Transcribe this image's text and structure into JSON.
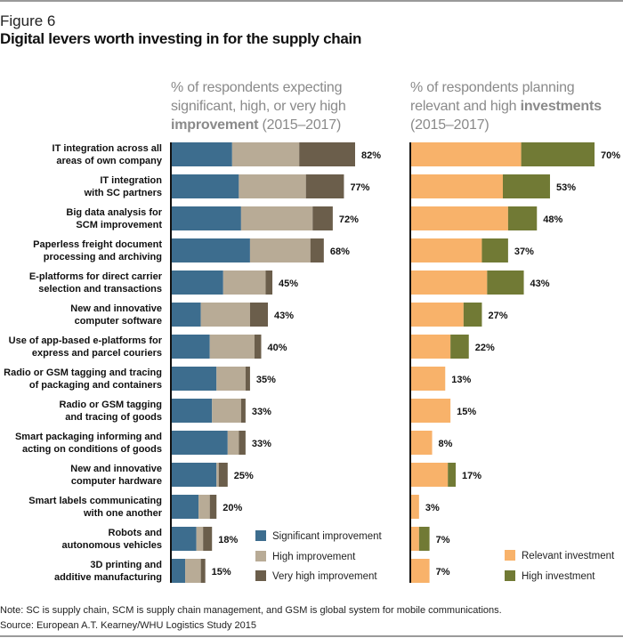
{
  "figure_label": "Figure 6",
  "title": "Digital levers worth investing in for the supply chain",
  "left_subtitle": {
    "line1": "% of respondents expecting",
    "line2": "significant, high, or very high",
    "bold": "improvement",
    "rest": " (2015–2017)"
  },
  "right_subtitle": {
    "line1": "% of respondents planning",
    "line2_plain": "relevant and high ",
    "bold": "investments",
    "line3": "(2015–2017)"
  },
  "note": "Note: SC is supply chain, SCM is supply chain management, and GSM is global system for mobile communications.",
  "source": "Source: European A.T. Kearney/WHU Logistics Study 2015",
  "colors": {
    "significant": "#3d6d8e",
    "high_improvement": "#b8ab96",
    "very_high": "#6b5e4b",
    "relevant_investment": "#f8b26a",
    "high_investment": "#717a35"
  },
  "chart_data": [
    {
      "type": "bar",
      "orientation": "horizontal",
      "stacked": true,
      "title": "% of respondents expecting significant, high, or very high improvement (2015–2017)",
      "categories": [
        [
          "IT integration across all",
          "areas of own company"
        ],
        [
          "IT integration",
          "with SC partners"
        ],
        [
          "Big data analysis for",
          "SCM improvement"
        ],
        [
          "Paperless freight document",
          "processing and archiving"
        ],
        [
          "E-platforms for direct carrier",
          "selection and transactions"
        ],
        [
          "New and innovative",
          "computer software"
        ],
        [
          "Use of app-based e-platforms for",
          "express and parcel couriers"
        ],
        [
          "Radio or GSM tagging and tracing",
          "of packaging and containers"
        ],
        [
          "Radio or GSM tagging",
          "and tracing of goods"
        ],
        [
          "Smart packaging informing and",
          "acting on conditions of goods"
        ],
        [
          "New and innovative",
          "computer hardware"
        ],
        [
          "Smart labels communicating",
          "with one another"
        ],
        [
          "Robots and",
          "autonomous vehicles"
        ],
        [
          "3D printing and",
          "additive manufacturing"
        ]
      ],
      "series": [
        {
          "name": "Significant improvement",
          "color_key": "significant",
          "values": [
            27,
            30,
            31,
            35,
            23,
            13,
            17,
            20,
            18,
            25,
            20,
            12,
            11,
            6
          ]
        },
        {
          "name": "High improvement",
          "color_key": "high_improvement",
          "values": [
            30,
            30,
            32,
            27,
            19,
            22,
            20,
            13,
            13,
            5,
            1,
            5,
            3,
            7
          ]
        },
        {
          "name": "Very high improvement",
          "color_key": "very_high",
          "values": [
            25,
            17,
            9,
            6,
            3,
            8,
            3,
            2,
            2,
            3,
            4,
            3,
            4,
            2
          ]
        }
      ],
      "totals": [
        "82%",
        "77%",
        "72%",
        "68%",
        "45%",
        "43%",
        "40%",
        "35%",
        "33%",
        "33%",
        "25%",
        "20%",
        "18%",
        "15%"
      ],
      "xlim": [
        0,
        82
      ],
      "legend": "bottom-right",
      "grid": false
    },
    {
      "type": "bar",
      "orientation": "horizontal",
      "stacked": true,
      "title": "% of respondents planning relevant and high investments (2015–2017)",
      "series": [
        {
          "name": "Relevant investment",
          "color_key": "relevant_investment",
          "values": [
            42,
            35,
            37,
            27,
            29,
            20,
            15,
            13,
            15,
            8,
            14,
            3,
            3,
            7
          ]
        },
        {
          "name": "High investment",
          "color_key": "high_investment",
          "values": [
            28,
            18,
            11,
            10,
            14,
            7,
            7,
            0,
            0,
            0,
            3,
            0,
            4,
            0
          ]
        }
      ],
      "totals": [
        "70%",
        "53%",
        "48%",
        "37%",
        "43%",
        "27%",
        "22%",
        "13%",
        "15%",
        "8%",
        "17%",
        "3%",
        "7%",
        "7%"
      ],
      "xlim": [
        0,
        70
      ],
      "legend": "bottom-right",
      "grid": false
    }
  ]
}
